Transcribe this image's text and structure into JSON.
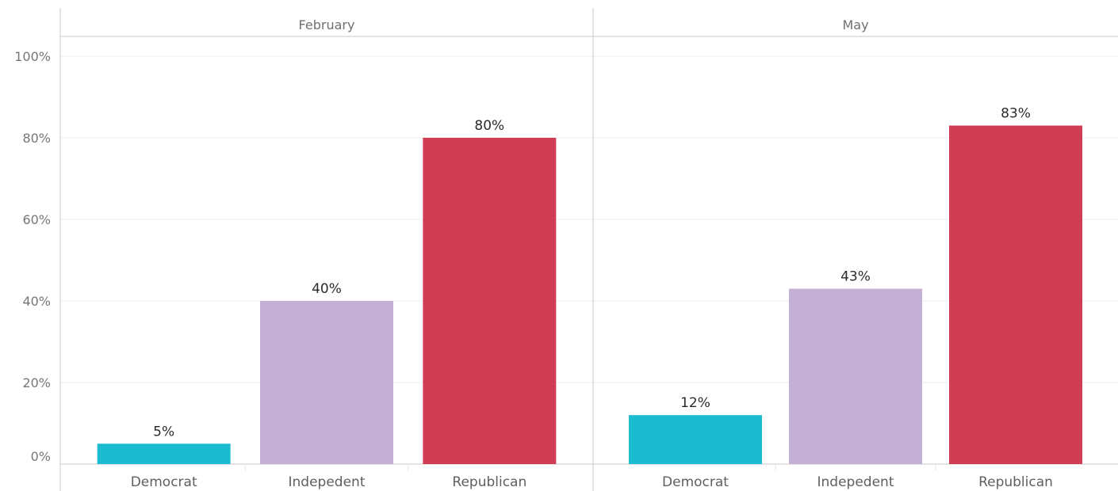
{
  "chart_data": {
    "type": "bar",
    "panels": [
      {
        "name": "February",
        "categories": [
          "Democrat",
          "Indepedent",
          "Republican"
        ],
        "values": [
          5,
          40,
          80
        ],
        "labels": [
          "5%",
          "40%",
          "80%"
        ]
      },
      {
        "name": "May",
        "categories": [
          "Democrat",
          "Indepedent",
          "Republican"
        ],
        "values": [
          12,
          43,
          83
        ],
        "labels": [
          "12%",
          "43%",
          "83%"
        ]
      }
    ],
    "category_colors": {
      "Democrat": "#1bbccf",
      "Indepedent": "#c4b0d5",
      "Republican": "#d03e55"
    },
    "yticks": [
      0,
      20,
      40,
      60,
      80,
      100
    ],
    "ytick_labels": [
      "0%",
      "20%",
      "40%",
      "60%",
      "80%",
      "100%"
    ],
    "ylim": [
      0,
      105
    ],
    "grid": true,
    "xlabel": "",
    "ylabel": "",
    "title": ""
  }
}
